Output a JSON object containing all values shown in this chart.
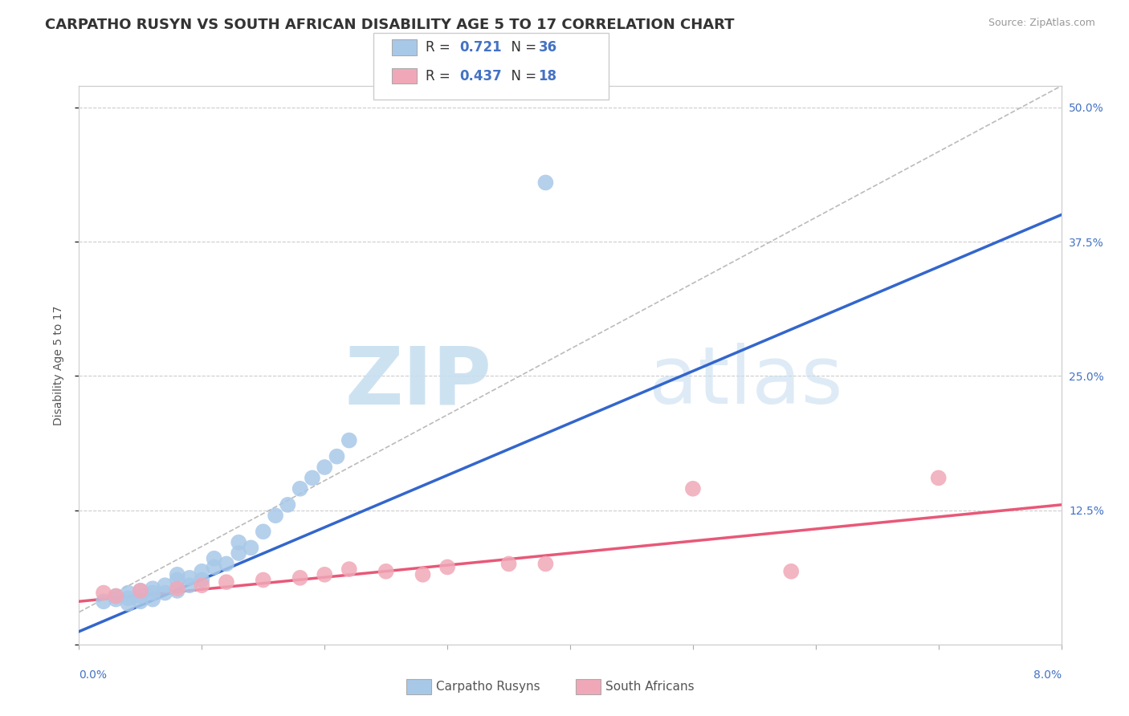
{
  "title": "CARPATHO RUSYN VS SOUTH AFRICAN DISABILITY AGE 5 TO 17 CORRELATION CHART",
  "source": "Source: ZipAtlas.com",
  "ylabel": "Disability Age 5 to 17",
  "xmin": 0.0,
  "xmax": 0.08,
  "ymin": 0.0,
  "ymax": 0.52,
  "yticks": [
    0.0,
    0.125,
    0.25,
    0.375,
    0.5
  ],
  "ytick_labels": [
    "",
    "12.5%",
    "25.0%",
    "37.5%",
    "50.0%"
  ],
  "xticks": [
    0.0,
    0.01,
    0.02,
    0.03,
    0.04,
    0.05,
    0.06,
    0.07,
    0.08
  ],
  "blue_color": "#A8C8E8",
  "pink_color": "#F0A8B8",
  "blue_line_color": "#3366CC",
  "pink_line_color": "#E85878",
  "r_value_color": "#4472C4",
  "legend_R1": "0.721",
  "legend_N1": "36",
  "legend_R2": "0.437",
  "legend_N2": "18",
  "legend_label1": "Carpatho Rusyns",
  "legend_label2": "South Africans",
  "blue_scatter_x": [
    0.002,
    0.003,
    0.003,
    0.004,
    0.004,
    0.004,
    0.005,
    0.005,
    0.005,
    0.006,
    0.006,
    0.006,
    0.007,
    0.007,
    0.008,
    0.008,
    0.008,
    0.009,
    0.009,
    0.01,
    0.01,
    0.011,
    0.011,
    0.012,
    0.013,
    0.013,
    0.014,
    0.015,
    0.016,
    0.017,
    0.018,
    0.019,
    0.02,
    0.021,
    0.022,
    0.038
  ],
  "blue_scatter_y": [
    0.04,
    0.042,
    0.045,
    0.038,
    0.043,
    0.048,
    0.04,
    0.045,
    0.05,
    0.042,
    0.048,
    0.052,
    0.048,
    0.055,
    0.05,
    0.06,
    0.065,
    0.055,
    0.062,
    0.06,
    0.068,
    0.072,
    0.08,
    0.075,
    0.085,
    0.095,
    0.09,
    0.105,
    0.12,
    0.13,
    0.145,
    0.155,
    0.165,
    0.175,
    0.19,
    0.43
  ],
  "pink_scatter_x": [
    0.002,
    0.003,
    0.005,
    0.008,
    0.01,
    0.012,
    0.015,
    0.018,
    0.02,
    0.022,
    0.025,
    0.028,
    0.03,
    0.035,
    0.038,
    0.05,
    0.058,
    0.07
  ],
  "pink_scatter_y": [
    0.048,
    0.045,
    0.05,
    0.052,
    0.055,
    0.058,
    0.06,
    0.062,
    0.065,
    0.07,
    0.068,
    0.065,
    0.072,
    0.075,
    0.075,
    0.145,
    0.068,
    0.155
  ],
  "blue_line_x0": 0.0,
  "blue_line_x1": 0.08,
  "blue_line_y0": 0.012,
  "blue_line_y1": 0.4,
  "pink_line_x0": 0.0,
  "pink_line_x1": 0.08,
  "pink_line_y0": 0.04,
  "pink_line_y1": 0.13,
  "ref_line_x0": 0.0,
  "ref_line_x1": 0.08,
  "ref_line_y0": 0.03,
  "ref_line_y1": 0.52,
  "background_color": "#FFFFFF",
  "grid_color": "#CCCCCC",
  "title_fontsize": 13,
  "axis_label_fontsize": 10,
  "tick_fontsize": 10,
  "watermark_zip": "ZIP",
  "watermark_atlas": "atlas",
  "watermark_color_zip": "#C8DFF0",
  "watermark_color_atlas": "#C8DFF0"
}
